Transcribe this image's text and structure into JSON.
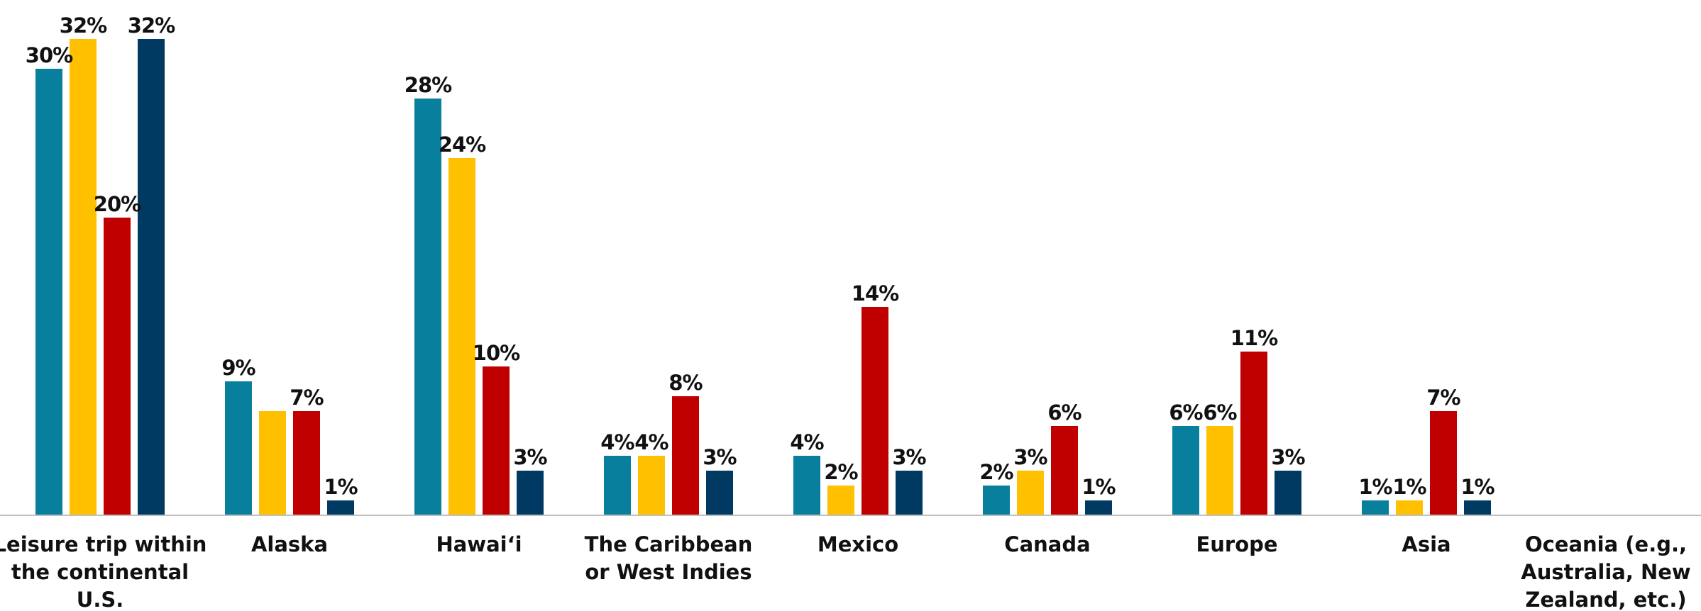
{
  "chart_data": {
    "type": "bar",
    "categories": [
      [
        "Leisure trip within",
        "the continental",
        "U.S."
      ],
      [
        "Alaska"
      ],
      [
        "Hawai‘i"
      ],
      [
        "The Caribbean",
        "or West Indies"
      ],
      [
        "Mexico"
      ],
      [
        "Canada"
      ],
      [
        "Europe"
      ],
      [
        "Asia"
      ],
      [
        "Oceania (e.g.,",
        "Australia, New",
        "Zealand, etc.)"
      ]
    ],
    "series": [
      {
        "color": "#087f9c",
        "values": [
          30,
          9,
          28,
          4,
          4,
          2,
          6,
          1,
          null
        ],
        "labels": [
          "30%",
          "",
          "28%",
          "4%",
          "4%",
          "2%",
          "6%",
          "1%",
          ""
        ]
      },
      {
        "color": "#ffc000",
        "values": [
          32,
          7,
          24,
          4,
          2,
          3,
          6,
          1,
          null
        ],
        "labels": [
          "32%",
          "",
          "24%",
          "4%",
          "2%",
          "3%",
          "6%",
          "1%",
          ""
        ]
      },
      {
        "color": "#c00000",
        "values": [
          20,
          7,
          10,
          8,
          14,
          6,
          11,
          7,
          null
        ],
        "labels": [
          "20%",
          "7%",
          "10%",
          "8%",
          "14%",
          "6%",
          "11%",
          "7%",
          ""
        ]
      },
      {
        "color": "#003a63",
        "values": [
          32,
          1,
          3,
          3,
          3,
          1,
          3,
          1,
          null
        ],
        "labels": [
          "32%",
          "1%",
          "3%",
          "3%",
          "3%",
          "1%",
          "3%",
          "1%",
          ""
        ]
      }
    ],
    "extra_labels": [
      {
        "category": 1,
        "series": 0,
        "text": "9%"
      }
    ],
    "ylim": [
      0,
      32
    ],
    "title": "",
    "xlabel": "",
    "ylabel": "",
    "grid": false,
    "legend": "none"
  }
}
